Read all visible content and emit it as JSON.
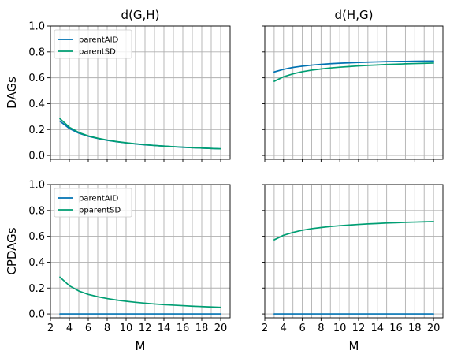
{
  "chart_data": [
    {
      "type": "line",
      "panel": "top-left",
      "title": "d(G,H)",
      "ylabel": "DAGs",
      "xlabel": "",
      "xlim": [
        2,
        21
      ],
      "ylim": [
        -0.03,
        1.0
      ],
      "xticks": [],
      "yticks": [
        "0.0",
        "0.2",
        "0.4",
        "0.6",
        "0.8",
        "1.0"
      ],
      "grid": true,
      "legend": "top-left",
      "x": [
        3,
        4,
        5,
        6,
        7,
        8,
        9,
        10,
        11,
        12,
        13,
        14,
        15,
        16,
        17,
        18,
        19,
        20
      ],
      "series": [
        {
          "name": "parentAID",
          "color": "#0072B2",
          "values": [
            0.265,
            0.208,
            0.172,
            0.148,
            0.131,
            0.117,
            0.106,
            0.097,
            0.089,
            0.082,
            0.077,
            0.072,
            0.067,
            0.063,
            0.06,
            0.057,
            0.054,
            0.051
          ]
        },
        {
          "name": "parentSD",
          "color": "#009E73",
          "values": [
            0.285,
            0.218,
            0.177,
            0.151,
            0.133,
            0.119,
            0.107,
            0.098,
            0.09,
            0.083,
            0.077,
            0.072,
            0.068,
            0.064,
            0.06,
            0.057,
            0.054,
            0.051
          ]
        }
      ]
    },
    {
      "type": "line",
      "panel": "top-right",
      "title": "d(H,G)",
      "ylabel": "",
      "xlabel": "",
      "xlim": [
        2,
        21
      ],
      "ylim": [
        -0.03,
        1.0
      ],
      "xticks": [],
      "yticks": [],
      "grid": true,
      "legend": "none",
      "x": [
        3,
        4,
        5,
        6,
        7,
        8,
        9,
        10,
        11,
        12,
        13,
        14,
        15,
        16,
        17,
        18,
        19,
        20
      ],
      "series": [
        {
          "name": "parentAID",
          "color": "#0072B2",
          "values": [
            0.645,
            0.665,
            0.68,
            0.69,
            0.698,
            0.704,
            0.709,
            0.713,
            0.716,
            0.719,
            0.721,
            0.723,
            0.725,
            0.726,
            0.727,
            0.728,
            0.729,
            0.73
          ]
        },
        {
          "name": "parentSD",
          "color": "#009E73",
          "values": [
            0.573,
            0.608,
            0.63,
            0.647,
            0.659,
            0.668,
            0.676,
            0.682,
            0.687,
            0.692,
            0.696,
            0.699,
            0.703,
            0.705,
            0.708,
            0.71,
            0.712,
            0.714
          ]
        }
      ]
    },
    {
      "type": "line",
      "panel": "bottom-left",
      "title": "",
      "ylabel": "CPDAGs",
      "xlabel": "M",
      "xlim": [
        2,
        21
      ],
      "ylim": [
        -0.03,
        1.0
      ],
      "xticks": [
        "2",
        "4",
        "6",
        "8",
        "10",
        "12",
        "14",
        "16",
        "18",
        "20"
      ],
      "yticks": [
        "0.0",
        "0.2",
        "0.4",
        "0.6",
        "0.8",
        "1.0"
      ],
      "grid": true,
      "legend": "top-left",
      "x": [
        3,
        4,
        5,
        6,
        7,
        8,
        9,
        10,
        11,
        12,
        13,
        14,
        15,
        16,
        17,
        18,
        19,
        20
      ],
      "series": [
        {
          "name": "parentAID",
          "color": "#0072B2",
          "values": [
            0,
            0,
            0,
            0,
            0,
            0,
            0,
            0,
            0,
            0,
            0,
            0,
            0,
            0,
            0,
            0,
            0,
            0
          ]
        },
        {
          "name": "pparentSD",
          "color": "#009E73",
          "values": [
            0.285,
            0.218,
            0.177,
            0.151,
            0.133,
            0.119,
            0.107,
            0.098,
            0.09,
            0.083,
            0.077,
            0.072,
            0.068,
            0.064,
            0.06,
            0.057,
            0.054,
            0.051
          ]
        }
      ]
    },
    {
      "type": "line",
      "panel": "bottom-right",
      "title": "",
      "ylabel": "",
      "xlabel": "M",
      "xlim": [
        2,
        21
      ],
      "ylim": [
        -0.03,
        1.0
      ],
      "xticks": [
        "2",
        "4",
        "6",
        "8",
        "10",
        "12",
        "14",
        "16",
        "18",
        "20"
      ],
      "yticks": [],
      "grid": true,
      "legend": "none",
      "x": [
        3,
        4,
        5,
        6,
        7,
        8,
        9,
        10,
        11,
        12,
        13,
        14,
        15,
        16,
        17,
        18,
        19,
        20
      ],
      "series": [
        {
          "name": "parentAID",
          "color": "#0072B2",
          "values": [
            0,
            0,
            0,
            0,
            0,
            0,
            0,
            0,
            0,
            0,
            0,
            0,
            0,
            0,
            0,
            0,
            0,
            0
          ]
        },
        {
          "name": "pparentSD",
          "color": "#009E73",
          "values": [
            0.573,
            0.608,
            0.63,
            0.647,
            0.659,
            0.668,
            0.676,
            0.682,
            0.687,
            0.692,
            0.696,
            0.699,
            0.703,
            0.705,
            0.708,
            0.71,
            0.712,
            0.714
          ]
        }
      ]
    }
  ]
}
